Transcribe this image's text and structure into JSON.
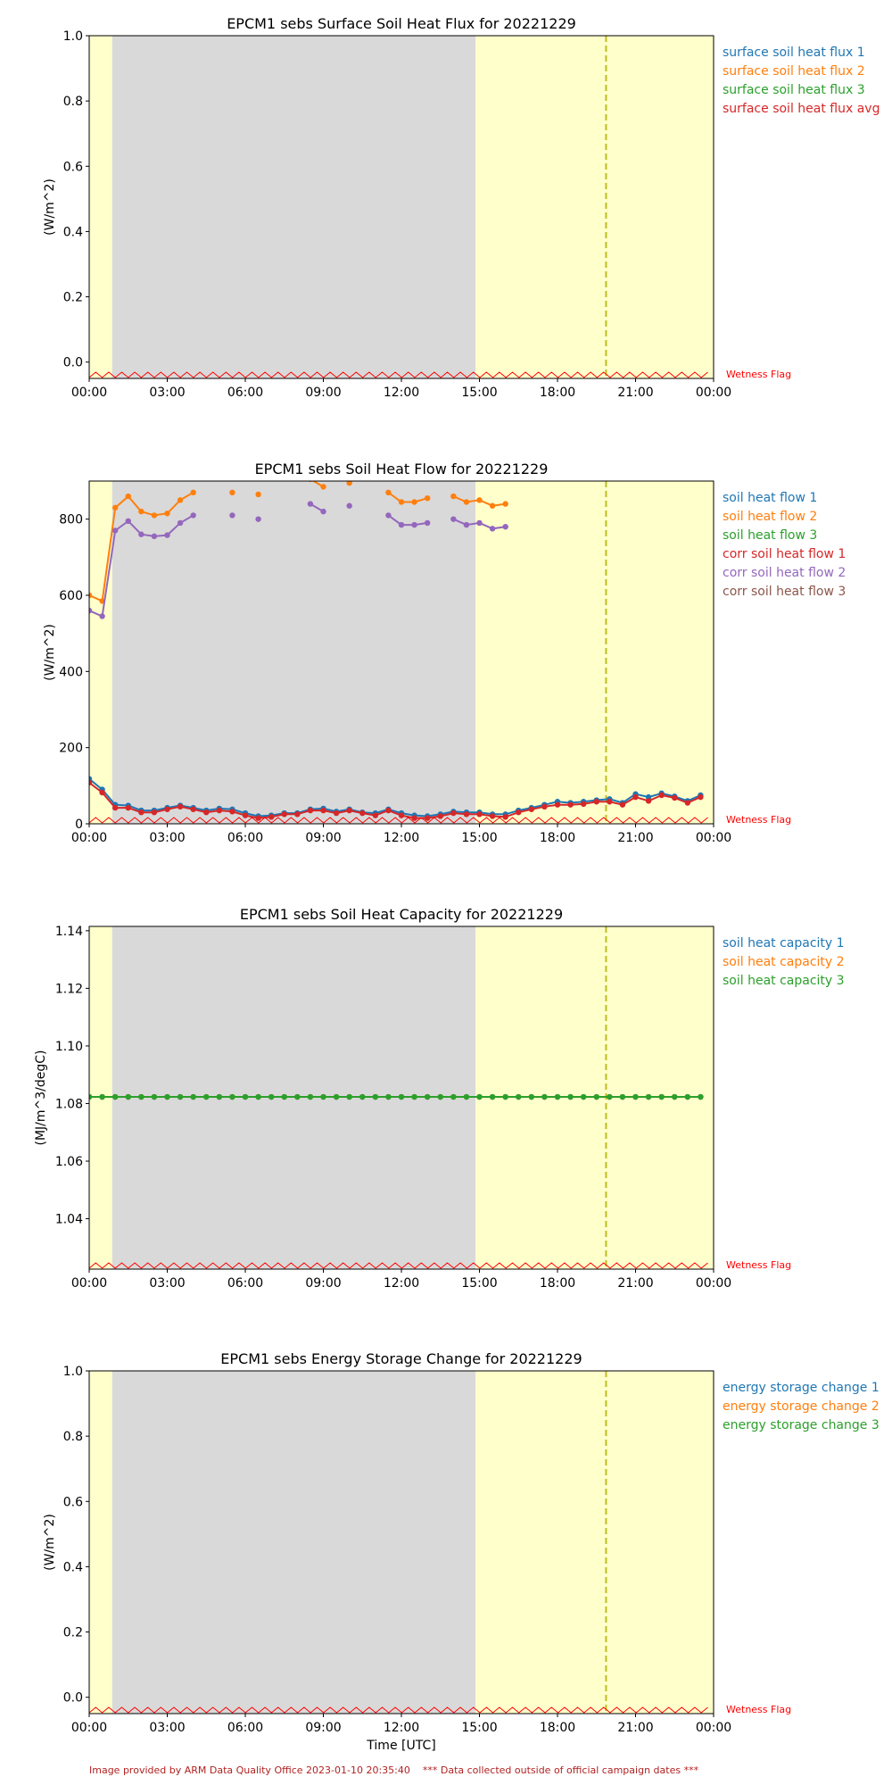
{
  "footer": {
    "provider": "Image provided by ARM Data Quality Office 2023-01-10 20:35:40",
    "campaign_note": "*** Data collected outside of official campaign dates ***"
  },
  "colors": {
    "blue": "#1f77b4",
    "orange": "#ff7f0e",
    "green": "#2ca02c",
    "red": "#d62728",
    "purple": "#9467bd",
    "brown": "#8c564b",
    "night_shade": "#ffffcc",
    "day_shade": "#d9d9d9",
    "wetness": "#ff0000",
    "marker_line": "#bcbd22"
  },
  "chart_data": [
    {
      "type": "line",
      "title": "EPCM1 sebs Surface Soil Heat Flux for 20221229",
      "xlabel": "",
      "ylabel": "(W/m^2)",
      "xlim": [
        "00:00",
        "24:00"
      ],
      "ylim": [
        -0.05,
        1.0
      ],
      "yticks": [
        "0.0",
        "0.2",
        "0.4",
        "0.6",
        "0.8",
        "1.0"
      ],
      "xticks": [
        "00:00",
        "03:00",
        "06:00",
        "09:00",
        "12:00",
        "15:00",
        "18:00",
        "21:00",
        "00:00"
      ],
      "shading": [
        {
          "from": "00:00",
          "to": "00:53",
          "kind": "yellow"
        },
        {
          "from": "00:53",
          "to": "14:51",
          "kind": "gray"
        },
        {
          "from": "14:51",
          "to": "24:00",
          "kind": "yellow"
        }
      ],
      "vline": "19:52",
      "flag_label": "Wetness Flag",
      "grid": false,
      "legend_position": "right-top",
      "series": [
        {
          "name": "surface soil heat flux 1",
          "color": "#1f77b4",
          "points": []
        },
        {
          "name": "surface soil heat flux 2",
          "color": "#ff7f0e",
          "points": []
        },
        {
          "name": "surface soil heat flux 3",
          "color": "#2ca02c",
          "points": []
        },
        {
          "name": "surface soil heat flux avg",
          "color": "#d62728",
          "points": []
        }
      ]
    },
    {
      "type": "line",
      "title": "EPCM1 sebs Soil Heat Flow for 20221229",
      "xlabel": "",
      "ylabel": "(W/m^2)",
      "xlim": [
        "00:00",
        "24:00"
      ],
      "ylim": [
        0,
        900
      ],
      "yticks": [
        "0",
        "200",
        "400",
        "600",
        "800"
      ],
      "xticks": [
        "00:00",
        "03:00",
        "06:00",
        "09:00",
        "12:00",
        "15:00",
        "18:00",
        "21:00",
        "00:00"
      ],
      "shading": [
        {
          "from": "00:00",
          "to": "00:53",
          "kind": "yellow"
        },
        {
          "from": "00:53",
          "to": "14:51",
          "kind": "gray"
        },
        {
          "from": "14:51",
          "to": "24:00",
          "kind": "yellow"
        }
      ],
      "vline": "19:52",
      "flag_label": "Wetness Flag",
      "grid": false,
      "legend_position": "right-top",
      "series": [
        {
          "name": "soil heat flow 1",
          "color": "#1f77b4",
          "points": [
            [
              "00:00",
              118
            ],
            [
              "00:30",
              90
            ],
            [
              "01:00",
              50
            ],
            [
              "01:30",
              48
            ],
            [
              "02:00",
              35
            ],
            [
              "02:30",
              35
            ],
            [
              "03:00",
              42
            ],
            [
              "03:30",
              48
            ],
            [
              "04:00",
              42
            ],
            [
              "04:30",
              35
            ],
            [
              "05:00",
              40
            ],
            [
              "05:30",
              38
            ],
            [
              "06:00",
              28
            ],
            [
              "06:30",
              20
            ],
            [
              "07:00",
              22
            ],
            [
              "07:30",
              28
            ],
            [
              "08:00",
              28
            ],
            [
              "08:30",
              38
            ],
            [
              "09:00",
              40
            ],
            [
              "09:30",
              32
            ],
            [
              "10:00",
              38
            ],
            [
              "10:30",
              30
            ],
            [
              "11:00",
              28
            ],
            [
              "11:30",
              38
            ],
            [
              "12:00",
              28
            ],
            [
              "12:30",
              22
            ],
            [
              "13:00",
              20
            ],
            [
              "13:30",
              25
            ],
            [
              "14:00",
              32
            ],
            [
              "14:30",
              30
            ],
            [
              "15:00",
              30
            ],
            [
              "15:30",
              25
            ],
            [
              "16:00",
              25
            ],
            [
              "16:30",
              35
            ],
            [
              "17:00",
              42
            ],
            [
              "17:30",
              50
            ],
            [
              "18:00",
              58
            ],
            [
              "18:30",
              55
            ],
            [
              "19:00",
              58
            ],
            [
              "19:30",
              62
            ],
            [
              "20:00",
              65
            ],
            [
              "20:30",
              55
            ],
            [
              "21:00",
              78
            ],
            [
              "21:30",
              70
            ],
            [
              "22:00",
              80
            ],
            [
              "22:30",
              72
            ],
            [
              "23:00",
              60
            ],
            [
              "23:30",
              75
            ]
          ]
        },
        {
          "name": "soil heat flow 2",
          "color": "#ff7f0e",
          "points": [
            [
              "00:00",
              600
            ],
            [
              "00:30",
              585
            ],
            [
              "01:00",
              830
            ],
            [
              "01:30",
              860
            ],
            [
              "02:00",
              820
            ],
            [
              "02:30",
              810
            ],
            [
              "03:00",
              815
            ],
            [
              "03:30",
              850
            ],
            [
              "04:00",
              870
            ],
            null,
            [
              "05:30",
              870
            ],
            null,
            [
              "06:30",
              865
            ],
            null,
            [
              "08:30",
              905
            ],
            [
              "09:00",
              885
            ],
            null,
            [
              "10:00",
              895
            ],
            null,
            [
              "11:30",
              870
            ],
            [
              "12:00",
              845
            ],
            [
              "12:30",
              845
            ],
            [
              "13:00",
              855
            ],
            null,
            [
              "14:00",
              860
            ],
            [
              "14:30",
              845
            ],
            [
              "15:00",
              850
            ],
            [
              "15:30",
              835
            ],
            [
              "16:00",
              840
            ]
          ]
        },
        {
          "name": "soil heat flow 3",
          "color": "#2ca02c",
          "points": []
        },
        {
          "name": "corr soil heat flow 1",
          "color": "#d62728",
          "points": [
            [
              "00:00",
              108
            ],
            [
              "00:30",
              82
            ],
            [
              "01:00",
              42
            ],
            [
              "01:30",
              42
            ],
            [
              "02:00",
              30
            ],
            [
              "02:30",
              30
            ],
            [
              "03:00",
              38
            ],
            [
              "03:30",
              45
            ],
            [
              "04:00",
              38
            ],
            [
              "04:30",
              30
            ],
            [
              "05:00",
              35
            ],
            [
              "05:30",
              32
            ],
            [
              "06:00",
              22
            ],
            [
              "06:30",
              15
            ],
            [
              "07:00",
              18
            ],
            [
              "07:30",
              25
            ],
            [
              "08:00",
              25
            ],
            [
              "08:30",
              35
            ],
            [
              "09:00",
              35
            ],
            [
              "09:30",
              28
            ],
            [
              "10:00",
              35
            ],
            [
              "10:30",
              28
            ],
            [
              "11:00",
              22
            ],
            [
              "11:30",
              35
            ],
            [
              "12:00",
              22
            ],
            [
              "12:30",
              15
            ],
            [
              "13:00",
              15
            ],
            [
              "13:30",
              20
            ],
            [
              "14:00",
              28
            ],
            [
              "14:30",
              25
            ],
            [
              "15:00",
              25
            ],
            [
              "15:30",
              20
            ],
            [
              "16:00",
              18
            ],
            [
              "16:30",
              30
            ],
            [
              "17:00",
              38
            ],
            [
              "17:30",
              45
            ],
            [
              "18:00",
              50
            ],
            [
              "18:30",
              50
            ],
            [
              "19:00",
              52
            ],
            [
              "19:30",
              58
            ],
            [
              "20:00",
              58
            ],
            [
              "20:30",
              50
            ],
            [
              "21:00",
              70
            ],
            [
              "21:30",
              60
            ],
            [
              "22:00",
              75
            ],
            [
              "22:30",
              68
            ],
            [
              "23:00",
              55
            ],
            [
              "23:30",
              70
            ]
          ]
        },
        {
          "name": "corr soil heat flow 2",
          "color": "#9467bd",
          "points": [
            [
              "00:00",
              560
            ],
            [
              "00:30",
              545
            ],
            [
              "01:00",
              770
            ],
            [
              "01:30",
              795
            ],
            [
              "02:00",
              760
            ],
            [
              "02:30",
              755
            ],
            [
              "03:00",
              758
            ],
            [
              "03:30",
              790
            ],
            [
              "04:00",
              810
            ],
            null,
            [
              "05:30",
              810
            ],
            null,
            [
              "06:30",
              800
            ],
            null,
            [
              "08:30",
              840
            ],
            [
              "09:00",
              820
            ],
            null,
            [
              "10:00",
              835
            ],
            null,
            [
              "11:30",
              810
            ],
            [
              "12:00",
              785
            ],
            [
              "12:30",
              785
            ],
            [
              "13:00",
              790
            ],
            null,
            [
              "14:00",
              800
            ],
            [
              "14:30",
              785
            ],
            [
              "15:00",
              790
            ],
            [
              "15:30",
              775
            ],
            [
              "16:00",
              780
            ]
          ]
        },
        {
          "name": "corr soil heat flow 3",
          "color": "#8c564b",
          "points": []
        }
      ]
    },
    {
      "type": "line",
      "title": "EPCM1 sebs Soil Heat Capacity for 20221229",
      "xlabel": "",
      "ylabel": "(MJ/m^3/degC)",
      "xlim": [
        "00:00",
        "24:00"
      ],
      "ylim": [
        1.0225,
        1.1415
      ],
      "yticks": [
        "1.04",
        "1.06",
        "1.08",
        "1.10",
        "1.12",
        "1.14"
      ],
      "xticks": [
        "00:00",
        "03:00",
        "06:00",
        "09:00",
        "12:00",
        "15:00",
        "18:00",
        "21:00",
        "00:00"
      ],
      "shading": [
        {
          "from": "00:00",
          "to": "00:53",
          "kind": "yellow"
        },
        {
          "from": "00:53",
          "to": "14:51",
          "kind": "gray"
        },
        {
          "from": "14:51",
          "to": "24:00",
          "kind": "yellow"
        }
      ],
      "vline": "19:52",
      "flag_label": "Wetness Flag",
      "grid": false,
      "legend_position": "right-top",
      "series": [
        {
          "name": "soil heat capacity 1",
          "color": "#1f77b4",
          "constant": 1.0823,
          "every_minutes": 30
        },
        {
          "name": "soil heat capacity 2",
          "color": "#ff7f0e",
          "constant": 1.0823,
          "every_minutes": 30
        },
        {
          "name": "soil heat capacity 3",
          "color": "#2ca02c",
          "constant": 1.0823,
          "every_minutes": 30
        }
      ]
    },
    {
      "type": "line",
      "title": "EPCM1 sebs Energy Storage Change for 20221229",
      "xlabel": "Time [UTC]",
      "ylabel": "(W/m^2)",
      "xlim": [
        "00:00",
        "24:00"
      ],
      "ylim": [
        -0.05,
        1.0
      ],
      "yticks": [
        "0.0",
        "0.2",
        "0.4",
        "0.6",
        "0.8",
        "1.0"
      ],
      "xticks": [
        "00:00",
        "03:00",
        "06:00",
        "09:00",
        "12:00",
        "15:00",
        "18:00",
        "21:00",
        "00:00"
      ],
      "shading": [
        {
          "from": "00:00",
          "to": "00:53",
          "kind": "yellow"
        },
        {
          "from": "00:53",
          "to": "14:51",
          "kind": "gray"
        },
        {
          "from": "14:51",
          "to": "24:00",
          "kind": "yellow"
        }
      ],
      "vline": "19:52",
      "flag_label": "Wetness Flag",
      "grid": false,
      "legend_position": "right-top",
      "series": [
        {
          "name": "energy storage change 1",
          "color": "#1f77b4",
          "points": []
        },
        {
          "name": "energy storage change 2",
          "color": "#ff7f0e",
          "points": []
        },
        {
          "name": "energy storage change 3",
          "color": "#2ca02c",
          "points": []
        }
      ]
    }
  ]
}
